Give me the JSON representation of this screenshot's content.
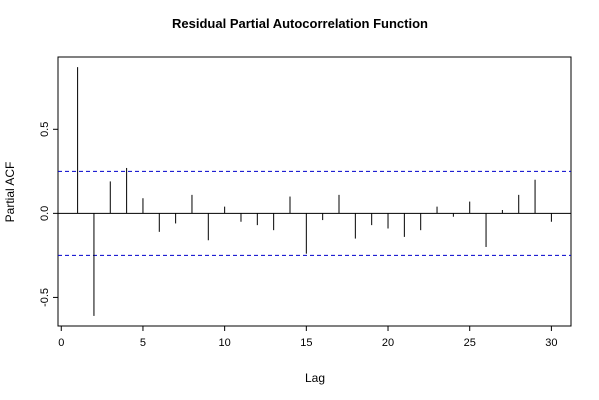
{
  "chart_data": {
    "type": "bar",
    "title": "Residual Partial Autocorrelation Function",
    "xlabel": "Lag",
    "ylabel": "Partial ACF",
    "xlim": [
      -0.2,
      31.2
    ],
    "ylim": [
      -0.67,
      0.93
    ],
    "x_ticks": [
      0,
      5,
      10,
      15,
      20,
      25,
      30
    ],
    "y_ticks": [
      -0.5,
      0.0,
      0.5
    ],
    "x_tick_labels": [
      "0",
      "5",
      "10",
      "15",
      "20",
      "25",
      "30"
    ],
    "y_tick_labels": [
      "-0.5",
      "0.0",
      "0.5"
    ],
    "confidence_bound": 0.25,
    "grid": false,
    "lags": [
      1,
      2,
      3,
      4,
      5,
      6,
      7,
      8,
      9,
      10,
      11,
      12,
      13,
      14,
      15,
      16,
      17,
      18,
      19,
      20,
      21,
      22,
      23,
      24,
      25,
      26,
      27,
      28,
      29,
      30
    ],
    "values": [
      0.87,
      -0.61,
      0.19,
      0.27,
      0.09,
      -0.11,
      -0.06,
      0.11,
      -0.16,
      0.04,
      -0.05,
      -0.07,
      -0.1,
      0.1,
      -0.24,
      -0.04,
      0.11,
      -0.15,
      -0.07,
      -0.09,
      -0.14,
      -0.1,
      0.04,
      -0.02,
      0.07,
      -0.2,
      0.02,
      0.11,
      0.2,
      -0.05
    ]
  },
  "colors": {
    "bars": "#000000",
    "bound_line": "#0000cc",
    "zero_line": "#000000",
    "frame": "#000000"
  }
}
